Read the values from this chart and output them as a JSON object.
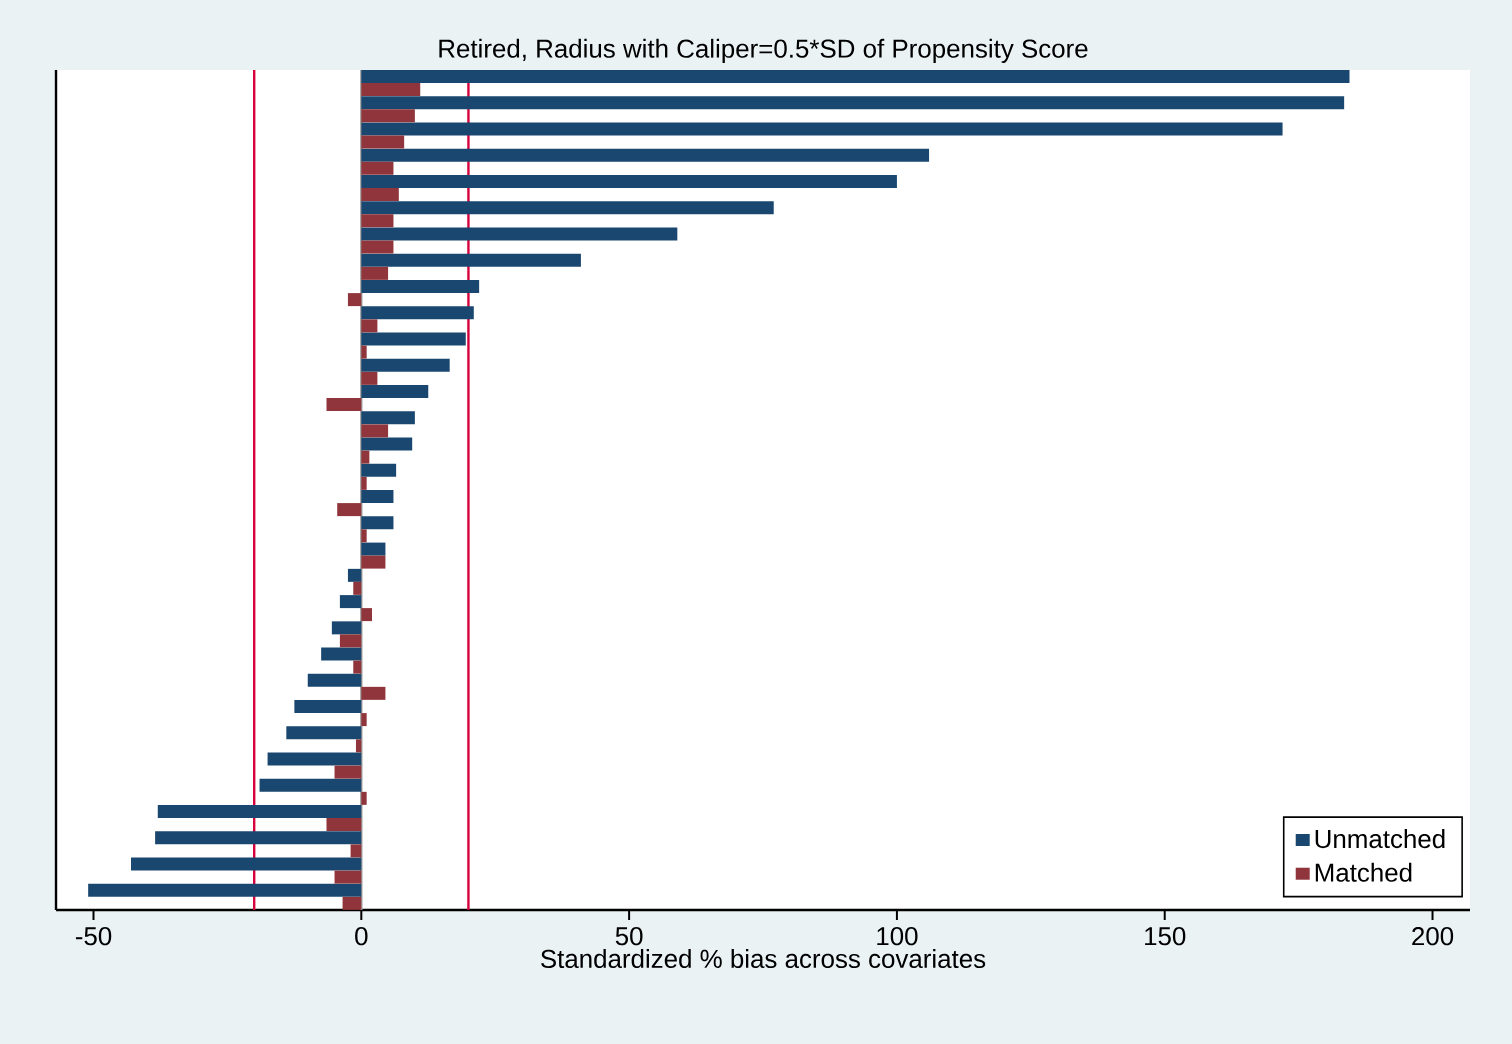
{
  "chart_data": {
    "type": "bar",
    "orientation": "horizontal",
    "title": "Retired, Radius with Caliper=0.5*SD of Propensity Score",
    "xlabel": "Standardized % bias across covariates",
    "categories": [
      null,
      null,
      null,
      null,
      null,
      null,
      null,
      null,
      null,
      null,
      null,
      null,
      null,
      null,
      null,
      null,
      null,
      null,
      null,
      null,
      null,
      null,
      null,
      null,
      null,
      null,
      null,
      null,
      null,
      null,
      null,
      null
    ],
    "series": [
      {
        "name": "Unmatched",
        "color": "#1a476f",
        "values": [
          184.5,
          183.5,
          172,
          106,
          100,
          77,
          59,
          41,
          22,
          21,
          19.5,
          16.5,
          12.5,
          10,
          9.5,
          6.5,
          6,
          6,
          4.5,
          -2.5,
          -4,
          -5.5,
          -7.5,
          -10,
          -12.5,
          -14,
          -17.5,
          -19,
          -38,
          -38.5,
          -43,
          -51
        ]
      },
      {
        "name": "Matched",
        "color": "#90353b",
        "values": [
          11,
          10,
          8,
          6,
          7,
          6,
          6,
          5,
          -2.5,
          3,
          1,
          3,
          -6.5,
          5,
          1.5,
          1,
          -4.5,
          1,
          4.5,
          -1.5,
          2,
          -4,
          -1.5,
          4.5,
          1,
          -1,
          -5,
          1,
          -6.5,
          -2,
          -5,
          -3.5
        ]
      }
    ],
    "xlim": [
      -57,
      207
    ],
    "xticks": [
      -50,
      0,
      50,
      100,
      150,
      200
    ],
    "ref_lines": [
      {
        "axis": "x",
        "value": -20,
        "color": "#d7003c"
      },
      {
        "axis": "x",
        "value": 20,
        "color": "#d7003c"
      },
      {
        "axis": "x",
        "value": 0,
        "color": "#a0a0a0"
      }
    ],
    "legend": "bottom right",
    "grid": false
  }
}
